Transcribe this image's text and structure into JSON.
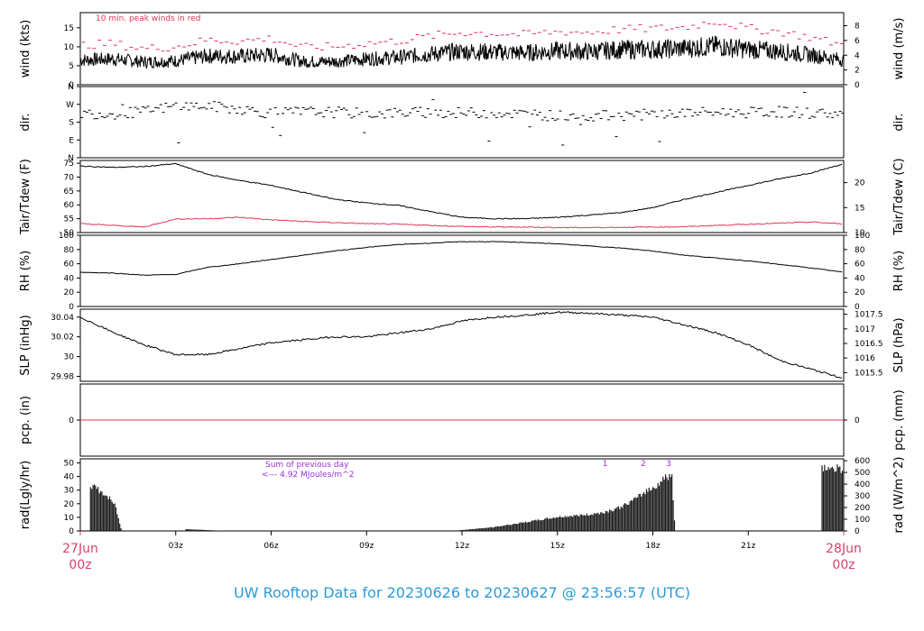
{
  "title": "UW Rooftop Data for 20230626  to  20230627 @ 23:56:57  (UTC)",
  "colors": {
    "peak": "#e0355a",
    "dew": "#e0355a",
    "precip": "#e0355a",
    "sun": "#9b30d9",
    "date": "#d9406a",
    "title": "#2a9bd6"
  },
  "chart_data": [
    {
      "type": "line",
      "ylabel": "wind (kts)",
      "ylabel_right": "wind (m/s)",
      "annotation": "10 min. peak winds in red",
      "ylim": [
        0,
        19
      ],
      "yticks": [
        0,
        5,
        10,
        15
      ],
      "yticks_right": [
        "0",
        "2",
        "4",
        "6",
        "8"
      ],
      "yticks_right_values": [
        0,
        3.888,
        7.776,
        11.664,
        15.552
      ],
      "x": [
        0,
        1,
        2,
        3,
        4,
        5,
        6,
        7,
        8,
        9,
        10,
        11,
        12,
        13,
        14,
        15,
        16,
        17,
        18,
        19,
        20,
        21,
        22,
        23,
        24
      ],
      "series": [
        {
          "name": "wind",
          "values": [
            6.5,
            6.8,
            6.0,
            6.3,
            7.6,
            7.5,
            7.9,
            6.1,
            6.1,
            6.8,
            7.2,
            8.1,
            8.8,
            8.6,
            8.4,
            8.9,
            8.7,
            9.3,
            9.3,
            9.6,
            10.2,
            9.3,
            8.8,
            7.8,
            6.5
          ]
        },
        {
          "name": "10 min. peak winds",
          "values": [
            10.5,
            10.8,
            9.5,
            10.0,
            11.8,
            11.5,
            12.2,
            9.8,
            10.0,
            10.9,
            11.5,
            12.8,
            13.8,
            13.5,
            13.2,
            14.0,
            13.8,
            14.6,
            14.8,
            15.1,
            16.8,
            14.8,
            14.0,
            12.4,
            10.4
          ]
        }
      ]
    },
    {
      "type": "scatter",
      "ylabel": "dir.",
      "ylabel_right": "dir.",
      "ylim": [
        0,
        360
      ],
      "ytick_values": [
        0,
        90,
        180,
        270,
        360
      ],
      "yticks": [
        "N",
        "E",
        "S",
        "W",
        "N"
      ],
      "x": [
        0,
        1,
        2,
        3,
        4,
        5,
        6,
        7,
        8,
        9,
        10,
        11,
        12,
        13,
        14,
        15,
        16,
        17,
        18,
        19,
        20,
        21,
        22,
        23,
        24
      ],
      "series": [
        {
          "name": "direction",
          "values": [
            225,
            222,
            232,
            262,
            260,
            248,
            224,
            232,
            230,
            222,
            226,
            230,
            226,
            228,
            220,
            212,
            210,
            214,
            220,
            225,
            230,
            228,
            232,
            226,
            222
          ]
        }
      ]
    },
    {
      "type": "line",
      "ylabel": "Tair/Tdew (F)",
      "ylabel_right": "Tair/Tdew (C)",
      "ylim": [
        50,
        76
      ],
      "yticks": [
        50,
        55,
        60,
        65,
        70,
        75
      ],
      "yticks_right": [
        "10",
        "15",
        "20"
      ],
      "yticks_right_values": [
        50,
        59,
        68
      ],
      "x": [
        0,
        1,
        2,
        3,
        4,
        5,
        6,
        7,
        8,
        9,
        10,
        11,
        12,
        13,
        14,
        15,
        16,
        17,
        18,
        19,
        20,
        21,
        22,
        23,
        24
      ],
      "series": [
        {
          "name": "air temperature",
          "values": [
            74.0,
            73.5,
            73.8,
            74.8,
            71.0,
            68.8,
            67.0,
            64.5,
            62.0,
            60.7,
            59.8,
            57.6,
            55.5,
            55.0,
            55.0,
            55.5,
            56.3,
            57.2,
            59.0,
            62.0,
            64.5,
            67.0,
            69.4,
            71.6,
            74.8
          ]
        },
        {
          "name": "dew point",
          "values": [
            53.2,
            52.6,
            52.0,
            54.9,
            55.0,
            55.5,
            54.6,
            54.0,
            53.6,
            53.2,
            53.0,
            52.6,
            52.2,
            52.0,
            52.0,
            51.8,
            51.8,
            51.9,
            52.0,
            52.1,
            52.6,
            53.0,
            53.4,
            53.8,
            53.1
          ]
        }
      ]
    },
    {
      "type": "line",
      "ylabel": "RH (%)",
      "ylabel_right": "RH (%)",
      "ylim": [
        0,
        100
      ],
      "yticks": [
        0,
        20,
        40,
        60,
        80,
        100
      ],
      "yticks_right": [
        "0",
        "20",
        "40",
        "60",
        "80",
        "100"
      ],
      "yticks_right_values": [
        0,
        20,
        40,
        60,
        80,
        100
      ],
      "x": [
        0,
        1,
        2,
        3,
        4,
        5,
        6,
        7,
        8,
        9,
        10,
        11,
        12,
        13,
        14,
        15,
        16,
        17,
        18,
        19,
        20,
        21,
        22,
        23,
        24
      ],
      "series": [
        {
          "name": "relative humidity",
          "values": [
            48,
            47,
            44,
            45,
            55,
            60,
            66,
            72,
            78,
            83,
            87,
            89,
            91,
            91,
            90,
            88,
            85,
            82,
            78,
            72,
            68,
            64,
            59,
            54,
            48
          ]
        }
      ]
    },
    {
      "type": "line",
      "ylabel": "SLP (inHg)",
      "ylabel_right": "SLP (hPa)",
      "ylim": [
        29.975,
        30.048
      ],
      "yticks": [
        29.98,
        30.0,
        30.02,
        30.04
      ],
      "yticks_right": [
        "1015.5",
        "1016",
        "1016.5",
        "1017",
        "1017.5"
      ],
      "yticks_right_values": [
        29.9838,
        29.9986,
        30.0133,
        30.0281,
        30.0429
      ],
      "x": [
        0,
        1,
        2,
        3,
        4,
        5,
        6,
        7,
        8,
        9,
        10,
        11,
        12,
        13,
        14,
        15,
        16,
        17,
        18,
        19,
        20,
        21,
        22,
        23,
        24
      ],
      "series": [
        {
          "name": "sea level pressure",
          "values": [
            30.04,
            30.025,
            30.012,
            30.002,
            30.002,
            30.008,
            30.014,
            30.017,
            30.02,
            30.02,
            30.024,
            30.028,
            30.036,
            30.04,
            30.042,
            30.045,
            30.044,
            30.042,
            30.04,
            30.032,
            30.024,
            30.012,
            29.996,
            29.987,
            29.978
          ]
        }
      ]
    },
    {
      "type": "line",
      "ylabel": "pcp. (in)",
      "ylabel_right": "pcp. (mm)",
      "ylim": [
        -1,
        1
      ],
      "yticks": [
        0
      ],
      "yticks_right": [
        "0"
      ],
      "yticks_right_values": [
        0
      ],
      "x": [
        0,
        24
      ],
      "series": [
        {
          "name": "precipitation",
          "values": [
            0,
            0
          ]
        }
      ]
    },
    {
      "type": "area",
      "ylabel": "rad(Lgly/hr)",
      "ylabel_right": "rad (W/m^2)",
      "ylim": [
        0,
        53
      ],
      "yticks": [
        0,
        10,
        20,
        30,
        40,
        50
      ],
      "yticks_right": [
        "0",
        "100",
        "200",
        "300",
        "400",
        "500",
        "600"
      ],
      "yticks_right_values": [
        0,
        8.6,
        17.2,
        25.8,
        34.4,
        43.0,
        51.6
      ],
      "annotation_sum_1": "Sum of previous day",
      "annotation_sum_2": "<--- 4.92 MJoules/m^2",
      "markers": [
        "1",
        "2",
        "3"
      ],
      "marker_x": [
        16.5,
        17.7,
        18.5
      ],
      "x": [
        0.3,
        0.6,
        0.9,
        1.1,
        1.3,
        3.3,
        4.6,
        11.9,
        13.0,
        14.0,
        14.5,
        15.0,
        15.5,
        16.0,
        16.5,
        17.0,
        17.5,
        17.8,
        18.0,
        18.2,
        18.3,
        18.5,
        18.6,
        18.7,
        23.3,
        23.5,
        23.7,
        24.0
      ],
      "series": [
        {
          "name": "radiation",
          "values": [
            37,
            32,
            26,
            20,
            0,
            1.5,
            0,
            0.5,
            3,
            7,
            9,
            11,
            12,
            13,
            15,
            19,
            26,
            32,
            34,
            38,
            41,
            44,
            42,
            0,
            52,
            50,
            50,
            50
          ]
        }
      ]
    }
  ],
  "x_axis": {
    "ticks": [
      "03z",
      "06z",
      "09z",
      "12z",
      "15z",
      "18z",
      "21z"
    ],
    "tick_hours": [
      3,
      6,
      9,
      12,
      15,
      18,
      21
    ],
    "start_date": "27Jun",
    "start_time": "00z",
    "end_date": "28Jun",
    "end_time": "00z"
  }
}
